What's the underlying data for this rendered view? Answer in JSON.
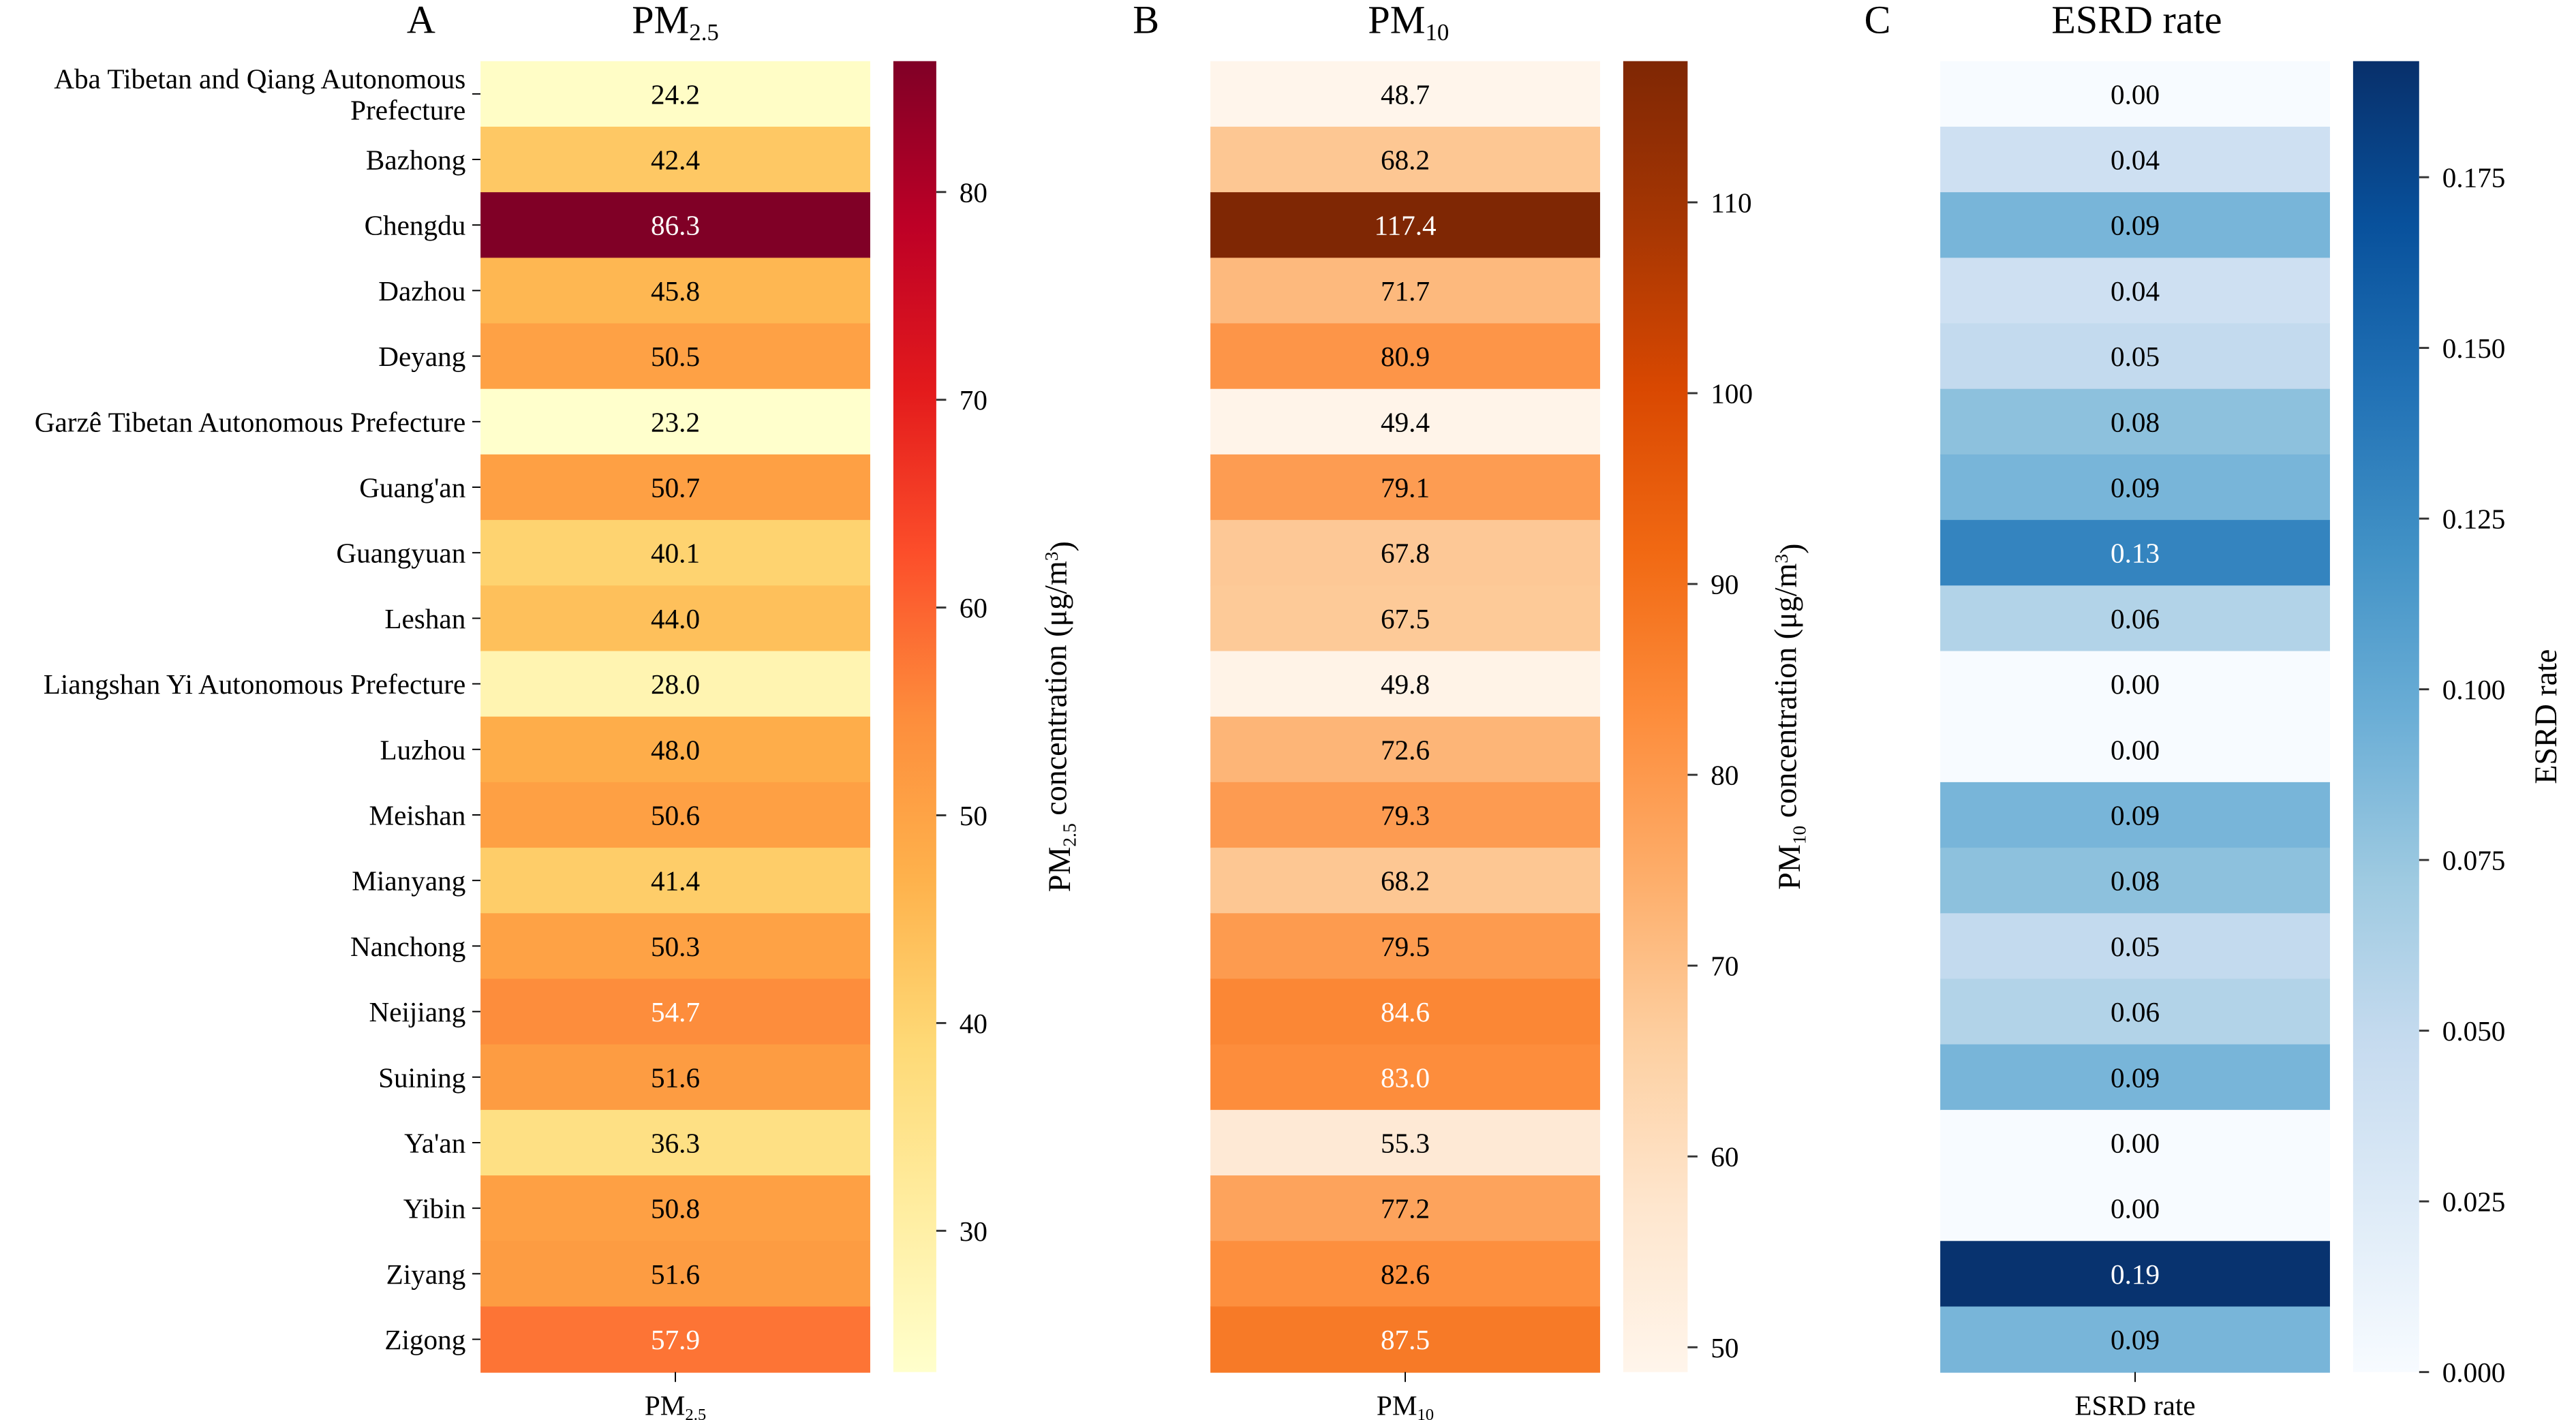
{
  "chart_data": [
    {
      "type": "heatmap",
      "panel_letter": "A",
      "title": {
        "base": "PM",
        "sub": "2.5"
      },
      "xtick": {
        "base": "PM",
        "sub": "2.5"
      },
      "colorbar_label": {
        "pre": "PM",
        "sub": "2.5",
        "post": " concentration (μg/m",
        "sup": "3",
        "end": ")"
      },
      "colormap": "YlOrRd",
      "colormap_stops": [
        "#ffffcc",
        "#ffeda0",
        "#fed976",
        "#feb24c",
        "#fd8d3c",
        "#fc4e2a",
        "#e31a1c",
        "#bd0026",
        "#800026"
      ],
      "vmin": 23.2,
      "vmax": 86.3,
      "colorbar_ticks": [
        30,
        40,
        50,
        60,
        70,
        80
      ],
      "colorbar_tick_labels": [
        "30",
        "40",
        "50",
        "60",
        "70",
        "80"
      ],
      "values": [
        24.2,
        42.4,
        86.3,
        45.8,
        50.5,
        23.2,
        50.7,
        40.1,
        44.0,
        28.0,
        48.0,
        50.6,
        41.4,
        50.3,
        54.7,
        51.6,
        36.3,
        50.8,
        51.6,
        57.9
      ],
      "labels": [
        "24.2",
        "42.4",
        "86.3",
        "45.8",
        "50.5",
        "23.2",
        "50.7",
        "40.1",
        "44.0",
        "28.0",
        "48.0",
        "50.6",
        "41.4",
        "50.3",
        "54.7",
        "51.6",
        "36.3",
        "50.8",
        "51.6",
        "57.9"
      ]
    },
    {
      "type": "heatmap",
      "panel_letter": "B",
      "title": {
        "base": "PM",
        "sub": "10"
      },
      "xtick": {
        "base": "PM",
        "sub": "10"
      },
      "colorbar_label": {
        "pre": "PM",
        "sub": "10",
        "post": " concentration (μg/m",
        "sup": "3",
        "end": ")"
      },
      "colormap": "Oranges",
      "colormap_stops": [
        "#fff5eb",
        "#fee6ce",
        "#fdd0a2",
        "#fdae6b",
        "#fd8d3c",
        "#f16913",
        "#d94801",
        "#a63603",
        "#7f2704"
      ],
      "vmin": 48.7,
      "vmax": 117.4,
      "colorbar_ticks": [
        50,
        60,
        70,
        80,
        90,
        100,
        110
      ],
      "colorbar_tick_labels": [
        "50",
        "60",
        "70",
        "80",
        "90",
        "100",
        "110"
      ],
      "values": [
        48.7,
        68.2,
        117.4,
        71.7,
        80.9,
        49.4,
        79.1,
        67.8,
        67.5,
        49.8,
        72.6,
        79.3,
        68.2,
        79.5,
        84.6,
        83.0,
        55.3,
        77.2,
        82.6,
        87.5
      ],
      "labels": [
        "48.7",
        "68.2",
        "117.4",
        "71.7",
        "80.9",
        "49.4",
        "79.1",
        "67.8",
        "67.5",
        "49.8",
        "72.6",
        "79.3",
        "68.2",
        "79.5",
        "84.6",
        "83.0",
        "55.3",
        "77.2",
        "82.6",
        "87.5"
      ]
    },
    {
      "type": "heatmap",
      "panel_letter": "C",
      "title": {
        "base": "ESRD rate",
        "sub": ""
      },
      "xtick": {
        "base": "ESRD rate",
        "sub": ""
      },
      "colorbar_label": {
        "pre": "ESRD rate",
        "sub": "",
        "post": "",
        "sup": "",
        "end": ""
      },
      "colormap": "Blues",
      "colormap_stops": [
        "#f7fbff",
        "#deebf7",
        "#c6dbef",
        "#9ecae1",
        "#6baed6",
        "#4292c6",
        "#2171b5",
        "#08519c",
        "#08306b"
      ],
      "vmin": 0.0,
      "vmax": 0.192,
      "colorbar_ticks": [
        0,
        0.025,
        0.05,
        0.075,
        0.1,
        0.125,
        0.15,
        0.175
      ],
      "colorbar_tick_labels": [
        "0.000",
        "0.025",
        "0.050",
        "0.075",
        "0.100",
        "0.125",
        "0.150",
        "0.175"
      ],
      "values": [
        0.0,
        0.04,
        0.09,
        0.04,
        0.05,
        0.08,
        0.09,
        0.13,
        0.06,
        0.0,
        0.0,
        0.09,
        0.08,
        0.05,
        0.06,
        0.09,
        0.0,
        0.0,
        0.19,
        0.09
      ],
      "labels": [
        "0.00",
        "0.04",
        "0.09",
        "0.04",
        "0.05",
        "0.08",
        "0.09",
        "0.13",
        "0.06",
        "0.00",
        "0.00",
        "0.09",
        "0.08",
        "0.05",
        "0.06",
        "0.09",
        "0.00",
        "0.00",
        "0.19",
        "0.09"
      ]
    }
  ],
  "row_labels": [
    [
      "Aba Tibetan and Qiang Autonomous",
      "Prefecture"
    ],
    [
      "Bazhong"
    ],
    [
      "Chengdu"
    ],
    [
      "Dazhou"
    ],
    [
      "Deyang"
    ],
    [
      "Garzê Tibetan Autonomous Prefecture"
    ],
    [
      "Guang'an"
    ],
    [
      "Guangyuan"
    ],
    [
      "Leshan"
    ],
    [
      "Liangshan Yi Autonomous Prefecture"
    ],
    [
      "Luzhou"
    ],
    [
      "Meishan"
    ],
    [
      "Mianyang"
    ],
    [
      "Nanchong"
    ],
    [
      "Neijiang"
    ],
    [
      "Suining"
    ],
    [
      "Ya'an"
    ],
    [
      "Yibin"
    ],
    [
      "Ziyang"
    ],
    [
      "Zigong"
    ]
  ]
}
